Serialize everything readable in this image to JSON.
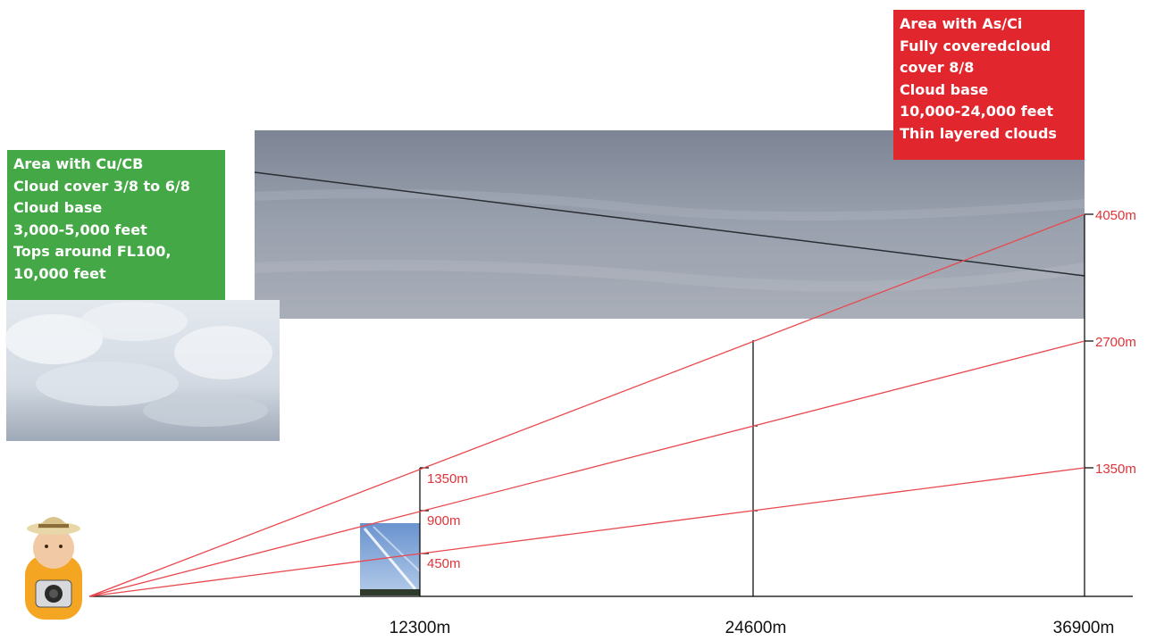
{
  "colors": {
    "sight_line": "#e8484e",
    "label_red": "#e0333a",
    "green_box": "#45a846",
    "red_box": "#e2262e",
    "axis": "#000000"
  },
  "icons": {
    "observer": "person-with-camera-icon"
  },
  "green_box": {
    "lines": [
      "Area with Cu/CB",
      "Cloud cover 3/8 to 6/8",
      "Cloud base",
      "3,000-5,000 feet",
      "Tops around FL100,",
      "10,000 feet"
    ]
  },
  "red_box": {
    "lines": [
      "Area with As/Ci",
      "Fully coveredcloud",
      "cover 8/8",
      "Cloud base",
      "10,000-24,000 feet",
      "Thin layered clouds"
    ]
  },
  "distances": [
    "12300m",
    "24600m",
    "36900m"
  ],
  "altitude_labels": {
    "near": [
      "1350m",
      "900m",
      "450m"
    ],
    "far": [
      "4050m",
      "2700m",
      "1350m"
    ]
  }
}
